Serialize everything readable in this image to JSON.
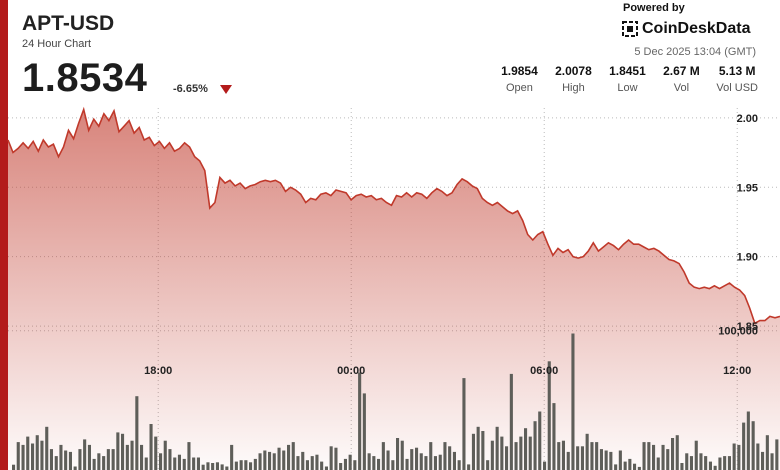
{
  "header": {
    "symbol": "APT-USD",
    "subtitle": "24 Hour Chart",
    "price": "1.8534",
    "change": "-6.65%",
    "change_direction": "down"
  },
  "branding": {
    "powered_by": "Powered by",
    "name": "CoinDeskData",
    "timestamp": "5 Dec 2025 13:04 (GMT)"
  },
  "stats": [
    {
      "value": "1.9854",
      "label": "Open"
    },
    {
      "value": "2.0078",
      "label": "High"
    },
    {
      "value": "1.8451",
      "label": "Low"
    },
    {
      "value": "2.67 M",
      "label": "Vol"
    },
    {
      "value": "5.13 M",
      "label": "Vol USD"
    }
  ],
  "colors": {
    "accent": "#b31b1b",
    "line": "#c0392b",
    "volume": "#5e5e59",
    "grid": "#bbbbbb"
  },
  "chart_data": {
    "type": "area",
    "x_ticks": [
      "18:00",
      "00:00",
      "06:00",
      "12:00"
    ],
    "x_tick_hours": [
      4.67,
      10.67,
      16.67,
      22.67
    ],
    "y_ticks": [
      "2.00",
      "1.95",
      "1.90",
      "1.85"
    ],
    "y_tick_values": [
      2.0,
      1.95,
      1.9,
      1.85
    ],
    "ylim": [
      1.84,
      2.015
    ],
    "xlim": [
      0,
      24
    ],
    "volume_tick_label": "100,000",
    "volume_tick_value": 100000,
    "volume_max": 145000,
    "series": [
      {
        "values": [
          1.984,
          1.975,
          1.978,
          1.982,
          1.978,
          1.983,
          1.976,
          1.984,
          1.979,
          1.981,
          1.972,
          1.979,
          1.991,
          1.985,
          1.996,
          2.006,
          1.991,
          1.999,
          1.994,
          2.003,
          1.998,
          2.005,
          1.99,
          1.994,
          1.998,
          1.989,
          1.993,
          1.984,
          1.986,
          1.98,
          1.983,
          1.978,
          1.982,
          1.976,
          1.978,
          1.982,
          1.979,
          1.972,
          1.969,
          1.962,
          1.935,
          1.939,
          1.957,
          1.953,
          1.955,
          1.951,
          1.953,
          1.949,
          1.951,
          1.952,
          1.954,
          1.955,
          1.954,
          1.955,
          1.953,
          1.947,
          1.95,
          1.948,
          1.945,
          1.939,
          1.942,
          1.941,
          1.945,
          1.946,
          1.944,
          1.948,
          1.947,
          1.946,
          1.941,
          1.944,
          1.945,
          1.943,
          1.944,
          1.941,
          1.942,
          1.939,
          1.937,
          1.944,
          1.943,
          1.946,
          1.943,
          1.946,
          1.945,
          1.942,
          1.946,
          1.949,
          1.947,
          1.944,
          1.946,
          1.952,
          1.956,
          1.954,
          1.951,
          1.949,
          1.942,
          1.939,
          1.937,
          1.939,
          1.936,
          1.933,
          1.931,
          1.933,
          1.926,
          1.916,
          1.912,
          1.916,
          1.918,
          1.909,
          1.901,
          1.906,
          1.903,
          1.905,
          1.9,
          1.899,
          1.9,
          1.904,
          1.91,
          1.904,
          1.907,
          1.91,
          1.908,
          1.905,
          1.909,
          1.912,
          1.909,
          1.909,
          1.907,
          1.905,
          1.906,
          1.904,
          1.901,
          1.898,
          1.897,
          1.895,
          1.889,
          1.881,
          1.878,
          1.877,
          1.878,
          1.877,
          1.879,
          1.877,
          1.879,
          1.881,
          1.878,
          1.876,
          1.872,
          1.863,
          1.852,
          1.854,
          1.854,
          1.857,
          1.856,
          1.857
        ]
      }
    ],
    "volume": [
      3800,
      20000,
      18000,
      24000,
      19000,
      25000,
      21000,
      31000,
      15000,
      10000,
      18000,
      14000,
      13000,
      2500,
      15000,
      22000,
      18000,
      8000,
      12000,
      10000,
      15000,
      15000,
      27000,
      26000,
      18000,
      21000,
      53000,
      18000,
      9000,
      33000,
      24000,
      12000,
      21000,
      15000,
      9000,
      11000,
      8000,
      20000,
      9000,
      9000,
      3800,
      5500,
      5000,
      5500,
      4000,
      2500,
      18000,
      6000,
      7000,
      7000,
      5500,
      8000,
      12000,
      14000,
      13000,
      12000,
      16000,
      14000,
      18000,
      20000,
      10000,
      13000,
      7000,
      10000,
      11000,
      6000,
      2500,
      17000,
      16000,
      5000,
      8000,
      11000,
      7000,
      70000,
      55000,
      12000,
      10000,
      8000,
      20000,
      14000,
      7000,
      23000,
      21000,
      8000,
      15000,
      16000,
      12000,
      10000,
      20000,
      10000,
      11000,
      20000,
      17000,
      13000,
      7000,
      66000,
      4000,
      26000,
      31000,
      28000,
      7000,
      21000,
      31000,
      24000,
      17000,
      69000,
      20000,
      24000,
      30000,
      24000,
      35000,
      42000,
      6000,
      78000,
      48000,
      20000,
      21000,
      13000,
      98000,
      17000,
      17000,
      26000,
      20000,
      20000,
      15000,
      14000,
      13000,
      4000,
      14000,
      6000,
      8000,
      4500,
      2200,
      20000,
      20000,
      18000,
      9000,
      18000,
      15000,
      23000,
      25000,
      5000,
      12000,
      10000,
      21000,
      12000,
      10000,
      6000,
      3000,
      9000,
      10000,
      10000,
      19000,
      18000,
      34000,
      42000,
      35000,
      19000,
      13000,
      25000,
      12000,
      22000
    ]
  }
}
